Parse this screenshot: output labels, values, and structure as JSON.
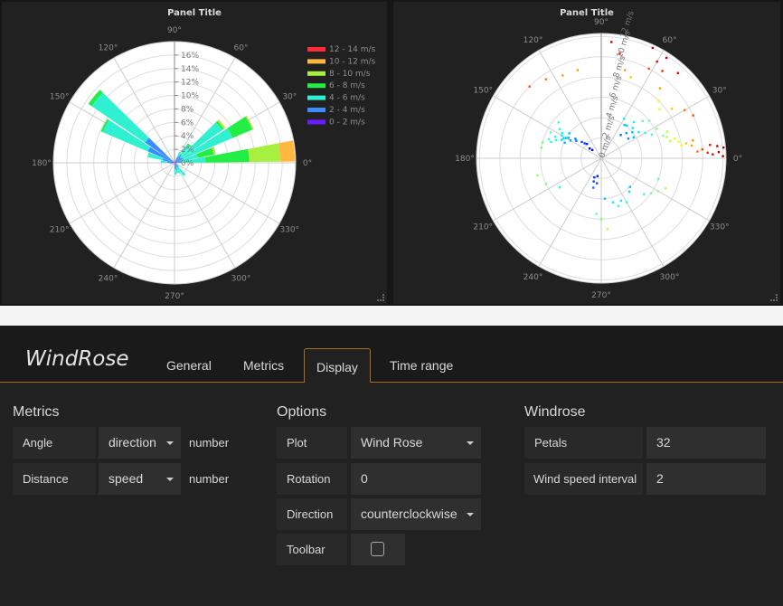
{
  "panels": [
    {
      "title": "Panel Title"
    },
    {
      "title": "Panel Title"
    }
  ],
  "chart_data": [
    {
      "type": "windrose",
      "angle_labels": [
        "0°",
        "30°",
        "60°",
        "90°",
        "120°",
        "150°",
        "180°",
        "210°",
        "240°",
        "270°",
        "300°",
        "330°"
      ],
      "radial_ticks": [
        "0%",
        "2%",
        "4%",
        "6%",
        "8%",
        "10%",
        "12%",
        "14%",
        "16%"
      ],
      "rmax": 18,
      "petals": 32,
      "direction": "counterclockwise",
      "legend_placement": "top-right",
      "series": [
        {
          "name": "0 - 2 m/s",
          "color": "#6a1bff"
        },
        {
          "name": "2 - 4 m/s",
          "color": "#3a8cff"
        },
        {
          "name": "4 - 6 m/s",
          "color": "#2ff0d0"
        },
        {
          "name": "6 - 8 m/s",
          "color": "#22ee44"
        },
        {
          "name": "8 - 10 m/s",
          "color": "#a8f040"
        },
        {
          "name": "10 - 12 m/s",
          "color": "#ffb840"
        },
        {
          "name": "12 - 14 m/s",
          "color": "#ff2a3a"
        }
      ],
      "data": [
        {
          "angle": 5.625,
          "values": [
            0.3,
            0.7,
            3.6,
            6.5,
            4.6,
            2.2,
            0
          ]
        },
        {
          "angle": 16.875,
          "values": [
            0.3,
            0.8,
            2.4,
            2.5,
            0.2,
            0.1,
            0
          ]
        },
        {
          "angle": 28.125,
          "values": [
            0.4,
            1.0,
            8.0,
            3.2,
            0.1,
            0.1,
            0
          ]
        },
        {
          "angle": 39.375,
          "values": [
            0.3,
            0.9,
            7.4,
            0.3,
            0.2,
            0.1,
            0
          ]
        },
        {
          "angle": 50.625,
          "values": [
            0.3,
            1.2,
            1.8,
            0.2,
            0,
            0,
            0
          ]
        },
        {
          "angle": 61.875,
          "values": [
            0.2,
            0.8,
            0.8,
            0,
            0,
            0,
            0
          ]
        },
        {
          "angle": 140.625,
          "values": [
            0.3,
            5.0,
            9.6,
            0.6,
            0,
            0,
            0
          ]
        },
        {
          "angle": 151.875,
          "values": [
            0.3,
            4.0,
            7.3,
            0.3,
            0,
            0,
            0
          ]
        },
        {
          "angle": 163.125,
          "values": [
            0.3,
            1.5,
            2.2,
            0.1,
            0,
            0,
            0
          ]
        },
        {
          "angle": 174.375,
          "values": [
            0.5,
            0.6,
            0.9,
            0,
            0,
            0,
            0
          ]
        },
        {
          "angle": 185.625,
          "values": [
            0.4,
            0.3,
            0,
            0,
            0,
            0,
            0
          ]
        },
        {
          "angle": 275.625,
          "values": [
            0.3,
            0.6,
            0.9,
            0,
            0,
            0,
            0
          ]
        },
        {
          "angle": 286.875,
          "values": [
            0.3,
            0.8,
            0.5,
            0,
            0,
            0,
            0
          ]
        },
        {
          "angle": 298.125,
          "values": [
            0.2,
            0.5,
            1.0,
            0,
            0,
            0,
            0
          ]
        },
        {
          "angle": 309.375,
          "values": [
            0.2,
            0.6,
            1.6,
            0,
            0,
            0,
            0
          ]
        },
        {
          "angle": 320.625,
          "values": [
            0.2,
            0.4,
            0.3,
            0,
            0,
            0,
            0
          ]
        }
      ]
    },
    {
      "type": "scatter",
      "polar": true,
      "angle_labels": [
        "0°",
        "30°",
        "60°",
        "90°",
        "120°",
        "150°",
        "180°",
        "210°",
        "240°",
        "270°",
        "300°",
        "330°"
      ],
      "radial_ticks": [
        "0 m/s",
        "2 m/s",
        "4 m/s",
        "6 m/s",
        "8 m/s",
        "10 m/s",
        "12 m/s"
      ],
      "rmax": 12.3,
      "color_scale": "jet",
      "points": [
        [
          140,
          5.5
        ],
        [
          145,
          5
        ],
        [
          150,
          4.5
        ],
        [
          155,
          5
        ],
        [
          160,
          5.5
        ],
        [
          150,
          3.5
        ],
        [
          145,
          3
        ],
        [
          140,
          2.5
        ],
        [
          135,
          2
        ],
        [
          140,
          1.5
        ],
        [
          150,
          4
        ],
        [
          158,
          4.8
        ],
        [
          162,
          5.2
        ],
        [
          148,
          3.8
        ],
        [
          152,
          4.2
        ],
        [
          143,
          3.2
        ],
        [
          138,
          2.2
        ],
        [
          137,
          1.2
        ],
        [
          155,
          4.3
        ],
        [
          147,
          4.6
        ],
        [
          153,
          5.6
        ],
        [
          142,
          4
        ],
        [
          157,
          3.9
        ],
        [
          40,
          4
        ],
        [
          45,
          3.5
        ],
        [
          35,
          4.5
        ],
        [
          30,
          5
        ],
        [
          50,
          3
        ],
        [
          55,
          4
        ],
        [
          42,
          5.5
        ],
        [
          38,
          6
        ],
        [
          60,
          4.5
        ],
        [
          48,
          4.8
        ],
        [
          33,
          3.8
        ],
        [
          25,
          5.5
        ],
        [
          28,
          6.2
        ],
        [
          20,
          6.5
        ],
        [
          22,
          7
        ],
        [
          15,
          7.5
        ],
        [
          12,
          7.8
        ],
        [
          10,
          8.5
        ],
        [
          8,
          9
        ],
        [
          5,
          10
        ],
        [
          3,
          10.5
        ],
        [
          2,
          11
        ],
        [
          6,
          11.5
        ],
        [
          1,
          12
        ],
        [
          4,
          9.5
        ],
        [
          7,
          10.8
        ],
        [
          44,
          4.3
        ],
        [
          36,
          3.3
        ],
        [
          52,
          4.1
        ],
        [
          18,
          6.8
        ],
        [
          9,
          8
        ],
        [
          14,
          7
        ],
        [
          11,
          9.2
        ],
        [
          3,
          11.6
        ],
        [
          5,
          12.1
        ],
        [
          60,
          11
        ],
        [
          55,
          10.5
        ],
        [
          65,
          12
        ],
        [
          50,
          9
        ],
        [
          45,
          8
        ],
        [
          40,
          7.5
        ],
        [
          35,
          8.5
        ],
        [
          30,
          9.5
        ],
        [
          75,
          9
        ],
        [
          80,
          10.5
        ],
        [
          85,
          11.5
        ],
        [
          70,
          8.5
        ],
        [
          105,
          9
        ],
        [
          115,
          9
        ],
        [
          125,
          9.5
        ],
        [
          135,
          10
        ],
        [
          62,
          10
        ],
        [
          57,
          11.8
        ],
        [
          48,
          11.3
        ],
        [
          25,
          10
        ],
        [
          250,
          2
        ],
        [
          255,
          3
        ],
        [
          260,
          2.5
        ],
        [
          275,
          4
        ],
        [
          285,
          4.5
        ],
        [
          290,
          5
        ],
        [
          300,
          5
        ],
        [
          315,
          4
        ],
        [
          320,
          5.5
        ],
        [
          325,
          6
        ],
        [
          330,
          6.5
        ],
        [
          335,
          7
        ],
        [
          340,
          6
        ],
        [
          265,
          5.5
        ],
        [
          270,
          6
        ],
        [
          275,
          7
        ],
        [
          215,
          5
        ],
        [
          205,
          6
        ],
        [
          195,
          6.5
        ],
        [
          165,
          6
        ],
        [
          170,
          6
        ],
        [
          252,
          2.4
        ],
        [
          258,
          1.8
        ],
        [
          295,
          4.6
        ],
        [
          310,
          4.3
        ]
      ]
    }
  ],
  "editor": {
    "title": "WindRose",
    "tabs": [
      "General",
      "Metrics",
      "Display",
      "Time range"
    ],
    "active_tab": "Display",
    "metrics": {
      "heading": "Metrics",
      "rows": [
        {
          "label": "Angle",
          "value": "direction",
          "type": "number"
        },
        {
          "label": "Distance",
          "value": "speed",
          "type": "number"
        }
      ]
    },
    "options": {
      "heading": "Options",
      "plot_label": "Plot",
      "plot_value": "Wind Rose",
      "rotation_label": "Rotation",
      "rotation_value": "0",
      "direction_label": "Direction",
      "direction_value": "counterclockwise",
      "toolbar_label": "Toolbar",
      "toolbar_checked": false
    },
    "windrose": {
      "heading": "Windrose",
      "petals_label": "Petals",
      "petals_value": "32",
      "interval_label": "Wind speed interval",
      "interval_value": "2"
    }
  }
}
